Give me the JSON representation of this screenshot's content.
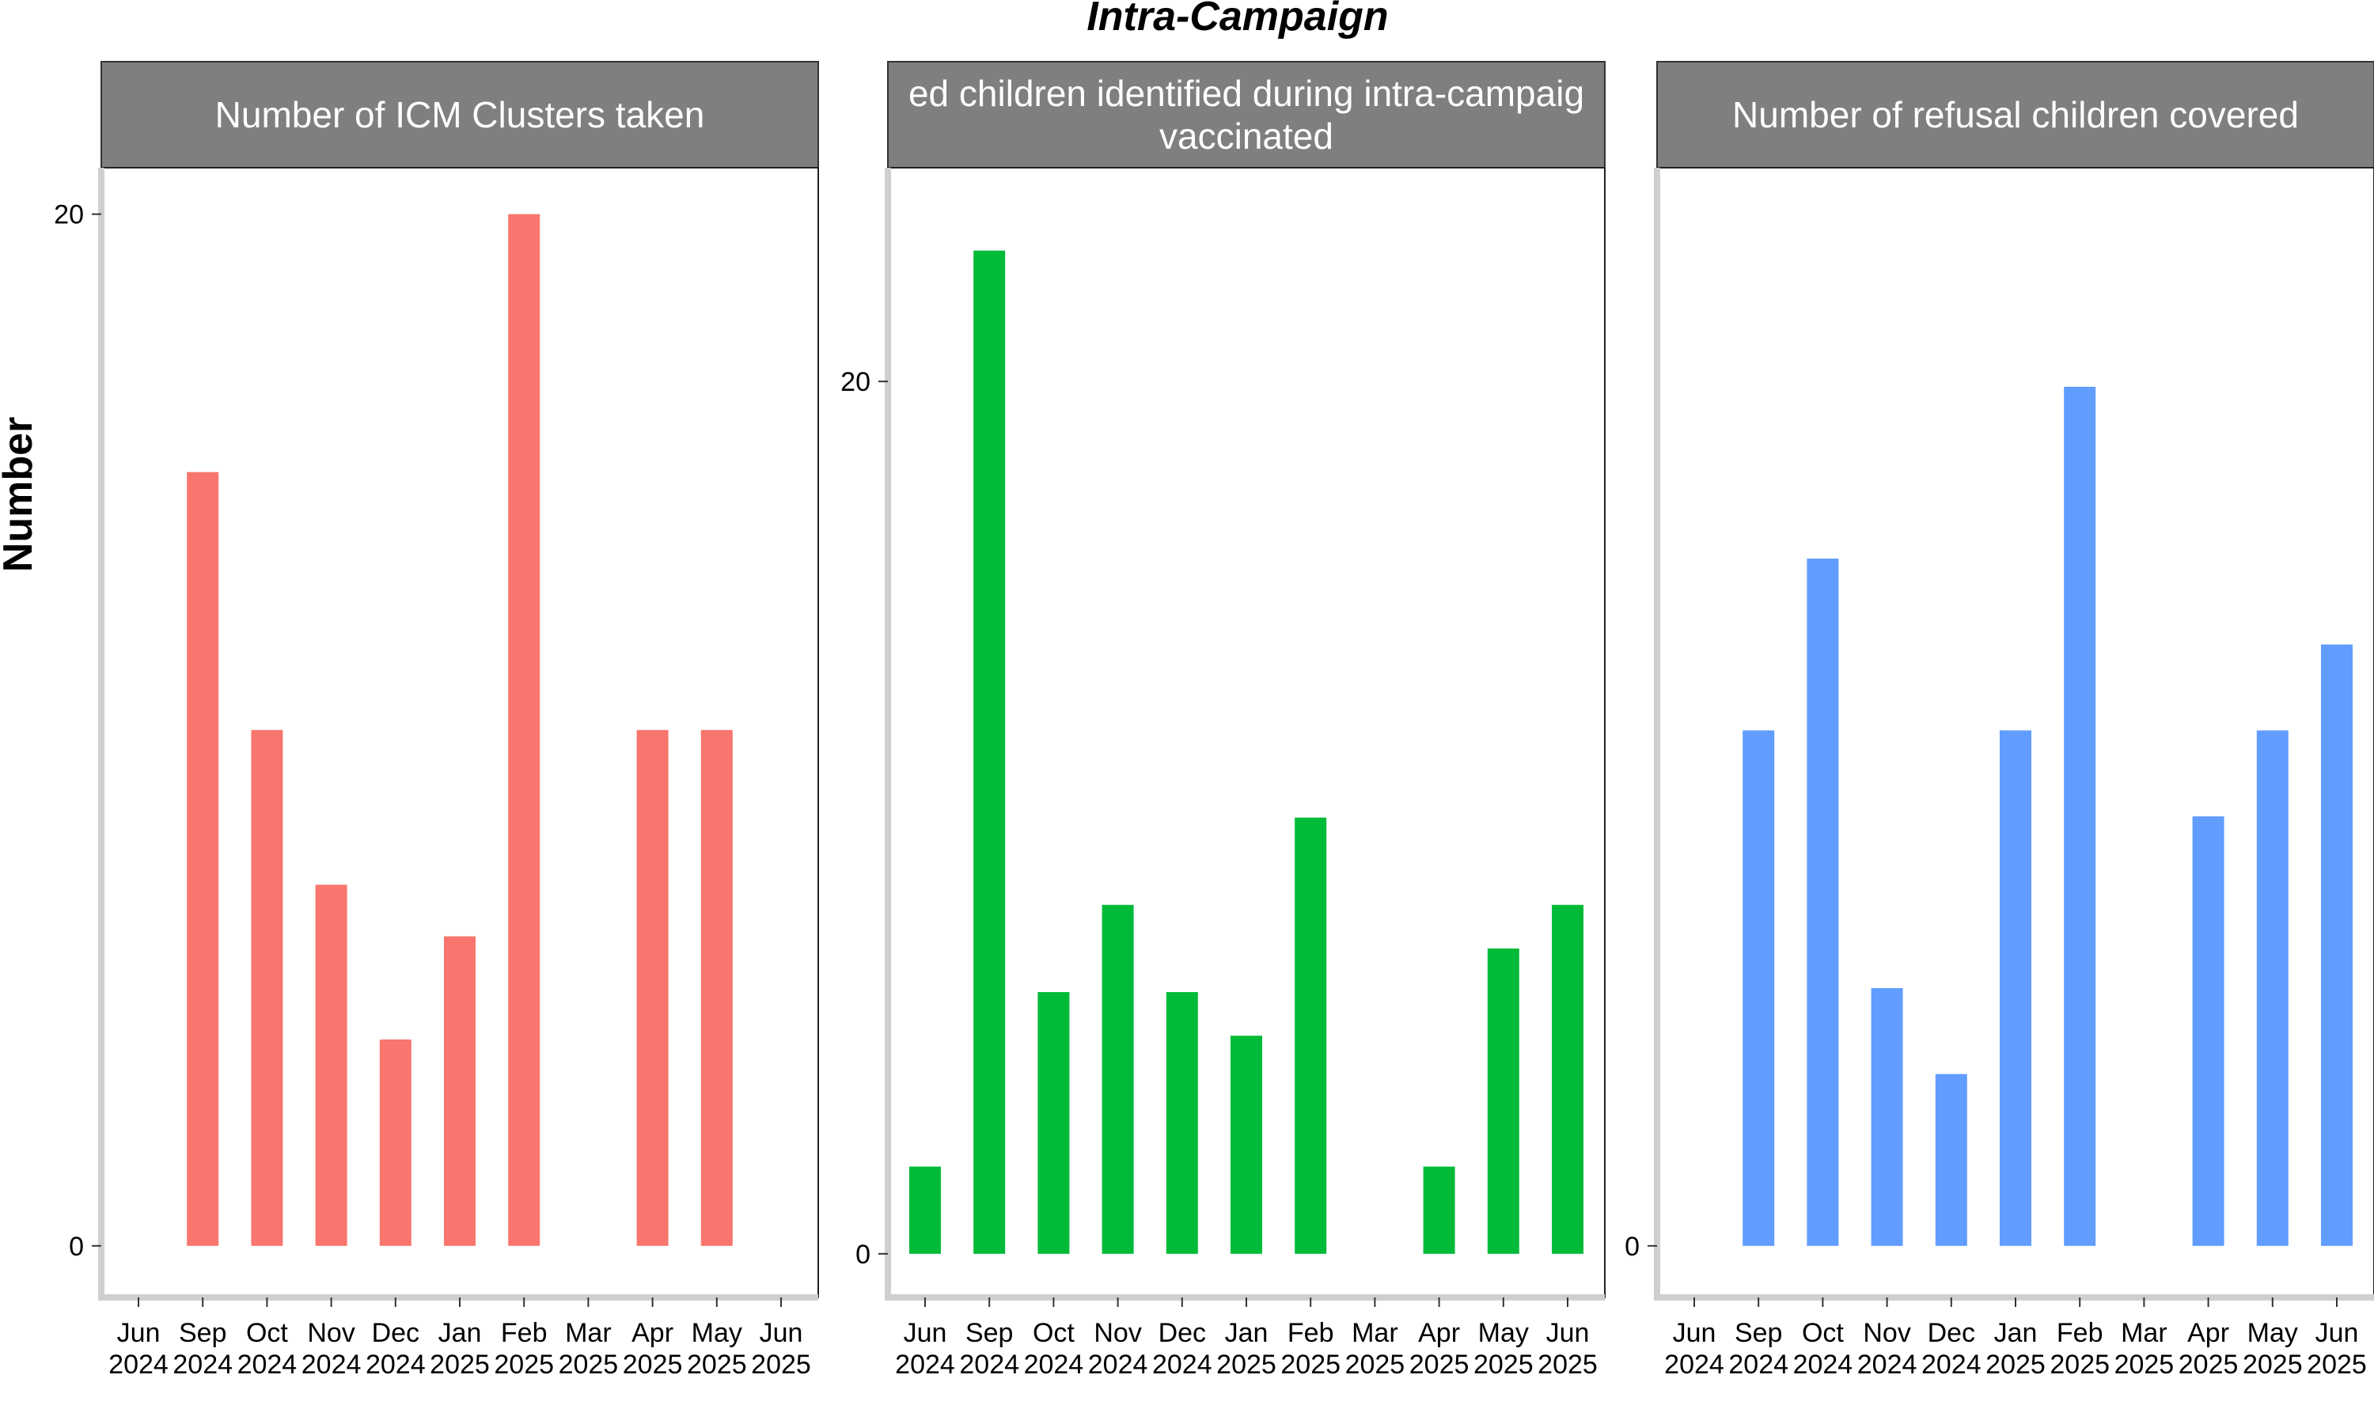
{
  "chart_data": {
    "type": "bar",
    "title": "Intra-Campaign",
    "ylabel": "Number",
    "xlabel": "",
    "grid": false,
    "legend": "none",
    "categories": [
      [
        "Jun",
        "2024"
      ],
      [
        "Sep",
        "2024"
      ],
      [
        "Oct",
        "2024"
      ],
      [
        "Nov",
        "2024"
      ],
      [
        "Dec",
        "2024"
      ],
      [
        "Jan",
        "2025"
      ],
      [
        "Feb",
        "2025"
      ],
      [
        "Mar",
        "2025"
      ],
      [
        "Apr",
        "2025"
      ],
      [
        "May",
        "2025"
      ],
      [
        "Jun",
        "2025"
      ]
    ],
    "panels": [
      {
        "title_lines": [
          "Number of ICM Clusters taken"
        ],
        "color": "#F8766D",
        "ylim": [
          -1,
          20.9
        ],
        "ytick_values": [
          0,
          20
        ],
        "ytick_labels": [
          "0",
          "20"
        ],
        "values": [
          null,
          15,
          10,
          7,
          4,
          6,
          20,
          null,
          10,
          10,
          null
        ]
      },
      {
        "title_lines": [
          "ed children identified during intra-campaig",
          "vaccinated"
        ],
        "color": "#00BA38",
        "ylim": [
          -1,
          24.9
        ],
        "ytick_values": [
          0,
          20
        ],
        "ytick_labels": [
          "0",
          "20"
        ],
        "values": [
          2,
          23,
          6,
          8,
          6,
          5,
          10,
          null,
          2,
          7,
          8
        ]
      },
      {
        "title_lines": [
          "Number of refusal children covered"
        ],
        "color": "#619CFF",
        "ylim": [
          -1.2,
          25.1
        ],
        "ytick_values": [
          0
        ],
        "ytick_labels": [
          "0"
        ],
        "values": [
          null,
          12,
          16,
          6,
          4,
          12,
          20,
          null,
          10,
          12,
          14
        ]
      }
    ]
  }
}
